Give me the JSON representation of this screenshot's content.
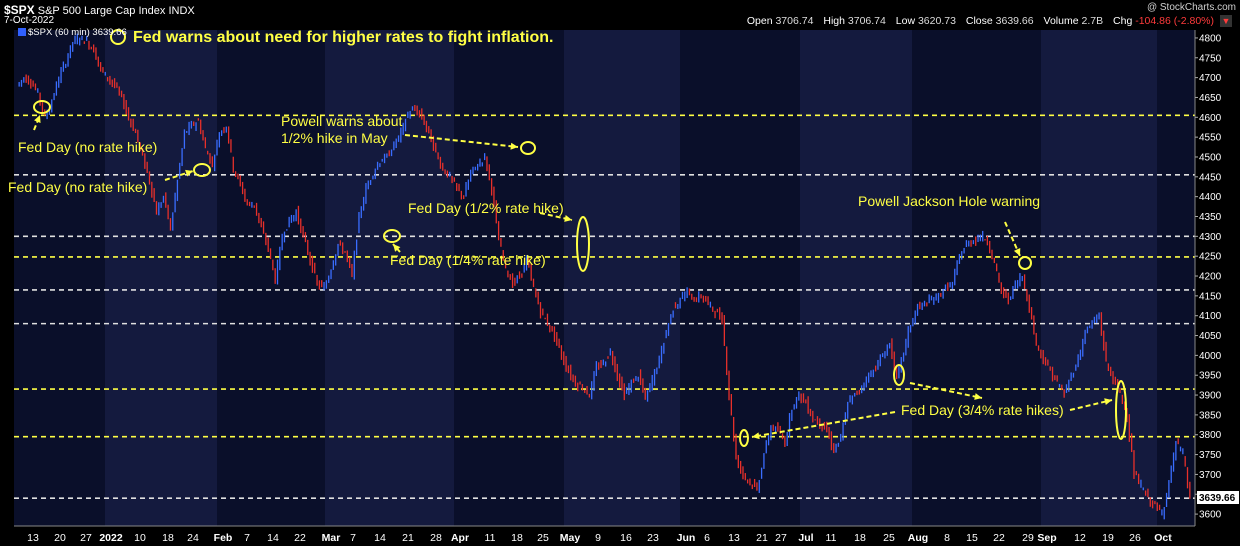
{
  "header": {
    "symbol": "$SPX",
    "name": "S&P 500 Large Cap Index",
    "exchange": "INDX",
    "date": "7-Oct-2022",
    "open_label": "Open",
    "open": "3706.74",
    "high_label": "High",
    "high": "3706.74",
    "low_label": "Low",
    "low": "3620.73",
    "close_label": "Close",
    "close": "3639.66",
    "volume_label": "Volume",
    "volume": "2.7B",
    "chg_label": "Chg",
    "chg": "-104.86 (-2.80%)",
    "chg_arrow": "▼",
    "watermark": "@ StockCharts.com",
    "series_tag": "$SPX (60 min) 3639.66"
  },
  "colors": {
    "background": "#000000",
    "band_dark": "#0a0f2a",
    "band_light": "#141a3e",
    "bar_up": "#3a6dff",
    "bar_down": "#e8302a",
    "annotation": "#ffff44",
    "hline_yellow": "#ffff44",
    "hline_white": "#e0e0e0"
  },
  "chart_data": {
    "type": "line",
    "title": "Fed warns about need for higher rates to fight inflation.",
    "ylim": [
      3570,
      4820
    ],
    "y_ticks": [
      3600,
      3650,
      3700,
      3750,
      3800,
      3850,
      3900,
      3950,
      4000,
      4050,
      4100,
      4150,
      4200,
      4250,
      4300,
      4350,
      4400,
      4450,
      4500,
      4550,
      4600,
      4650,
      4700,
      4750,
      4800
    ],
    "x_ticks": [
      "13",
      "20",
      "27",
      "2022",
      "10",
      "18",
      "24",
      "Feb",
      "7",
      "14",
      "22",
      "Mar",
      "7",
      "14",
      "21",
      "28",
      "Apr",
      "11",
      "18",
      "25",
      "May",
      "9",
      "16",
      "23",
      "Jun",
      "6",
      "13",
      "21",
      "27",
      "Jul",
      "11",
      "18",
      "25",
      "Aug",
      "8",
      "15",
      "22",
      "29",
      "Sep",
      "12",
      "19",
      "26",
      "Oct"
    ],
    "x_month_ticks": [
      "2022",
      "Feb",
      "Mar",
      "Apr",
      "May",
      "Jun",
      "Jul",
      "Aug",
      "Sep",
      "Oct"
    ],
    "series": [
      {
        "values": [
          4680,
          4700,
          4690,
          4660,
          4600,
          4640,
          4700,
          4740,
          4790,
          4800,
          4790,
          4770,
          4720,
          4700,
          4680,
          4650,
          4600,
          4560,
          4500,
          4440,
          4360,
          4400,
          4320,
          4440,
          4560,
          4580,
          4590,
          4520,
          4480,
          4560,
          4580,
          4470,
          4430,
          4380,
          4380,
          4320,
          4270,
          4190,
          4300,
          4340,
          4360,
          4300,
          4240,
          4180,
          4170,
          4220,
          4280,
          4260,
          4200,
          4350,
          4420,
          4460,
          4490,
          4500,
          4530,
          4560,
          4610,
          4620,
          4600,
          4560,
          4510,
          4470,
          4450,
          4420,
          4400,
          4460,
          4480,
          4500,
          4420,
          4290,
          4220,
          4180,
          4200,
          4240,
          4170,
          4110,
          4080,
          4050,
          4000,
          3960,
          3930,
          3920,
          3900,
          3970,
          3980,
          4010,
          3950,
          3900,
          3930,
          3950,
          3890,
          3940,
          3990,
          4060,
          4120,
          4140,
          4160,
          4140,
          4150,
          4130,
          4110,
          4090,
          3900,
          3740,
          3700,
          3680,
          3660,
          3750,
          3820,
          3810,
          3780,
          3870,
          3900,
          3880,
          3840,
          3830,
          3810,
          3760,
          3790,
          3880,
          3900,
          3920,
          3950,
          3970,
          4000,
          4030,
          3940,
          4010,
          4080,
          4120,
          4130,
          4140,
          4150,
          4170,
          4180,
          4250,
          4280,
          4290,
          4300,
          4290,
          4230,
          4160,
          4140,
          4180,
          4200,
          4120,
          4030,
          3990,
          3960,
          3930,
          3900,
          3950,
          3990,
          4060,
          4080,
          4100,
          3980,
          3940,
          3900,
          3850,
          3700,
          3670,
          3640,
          3620,
          3600,
          3680,
          3780,
          3750,
          3640
        ]
      }
    ],
    "horizontal_lines": [
      {
        "y": 4605,
        "color": "yellow"
      },
      {
        "y": 4455,
        "color": "white"
      },
      {
        "y": 4300,
        "color": "white"
      },
      {
        "y": 4248,
        "color": "yellow"
      },
      {
        "y": 4165,
        "color": "white"
      },
      {
        "y": 4080,
        "color": "white"
      },
      {
        "y": 3915,
        "color": "yellow"
      },
      {
        "y": 3795,
        "color": "yellow"
      },
      {
        "y": 3640,
        "color": "white"
      }
    ],
    "annotations": [
      "Fed Day (no rate hike)",
      "Fed Day (no rate hike)",
      "Powell warns about",
      "1/2% hike in May",
      "Fed Day (1/2% rate hike)",
      "Fed Day (1/4% rate hike)",
      "Powell Jackson Hole warning",
      "Fed Day (3/4% rate hikes)"
    ],
    "last_value": "3639.66",
    "grid": false
  }
}
